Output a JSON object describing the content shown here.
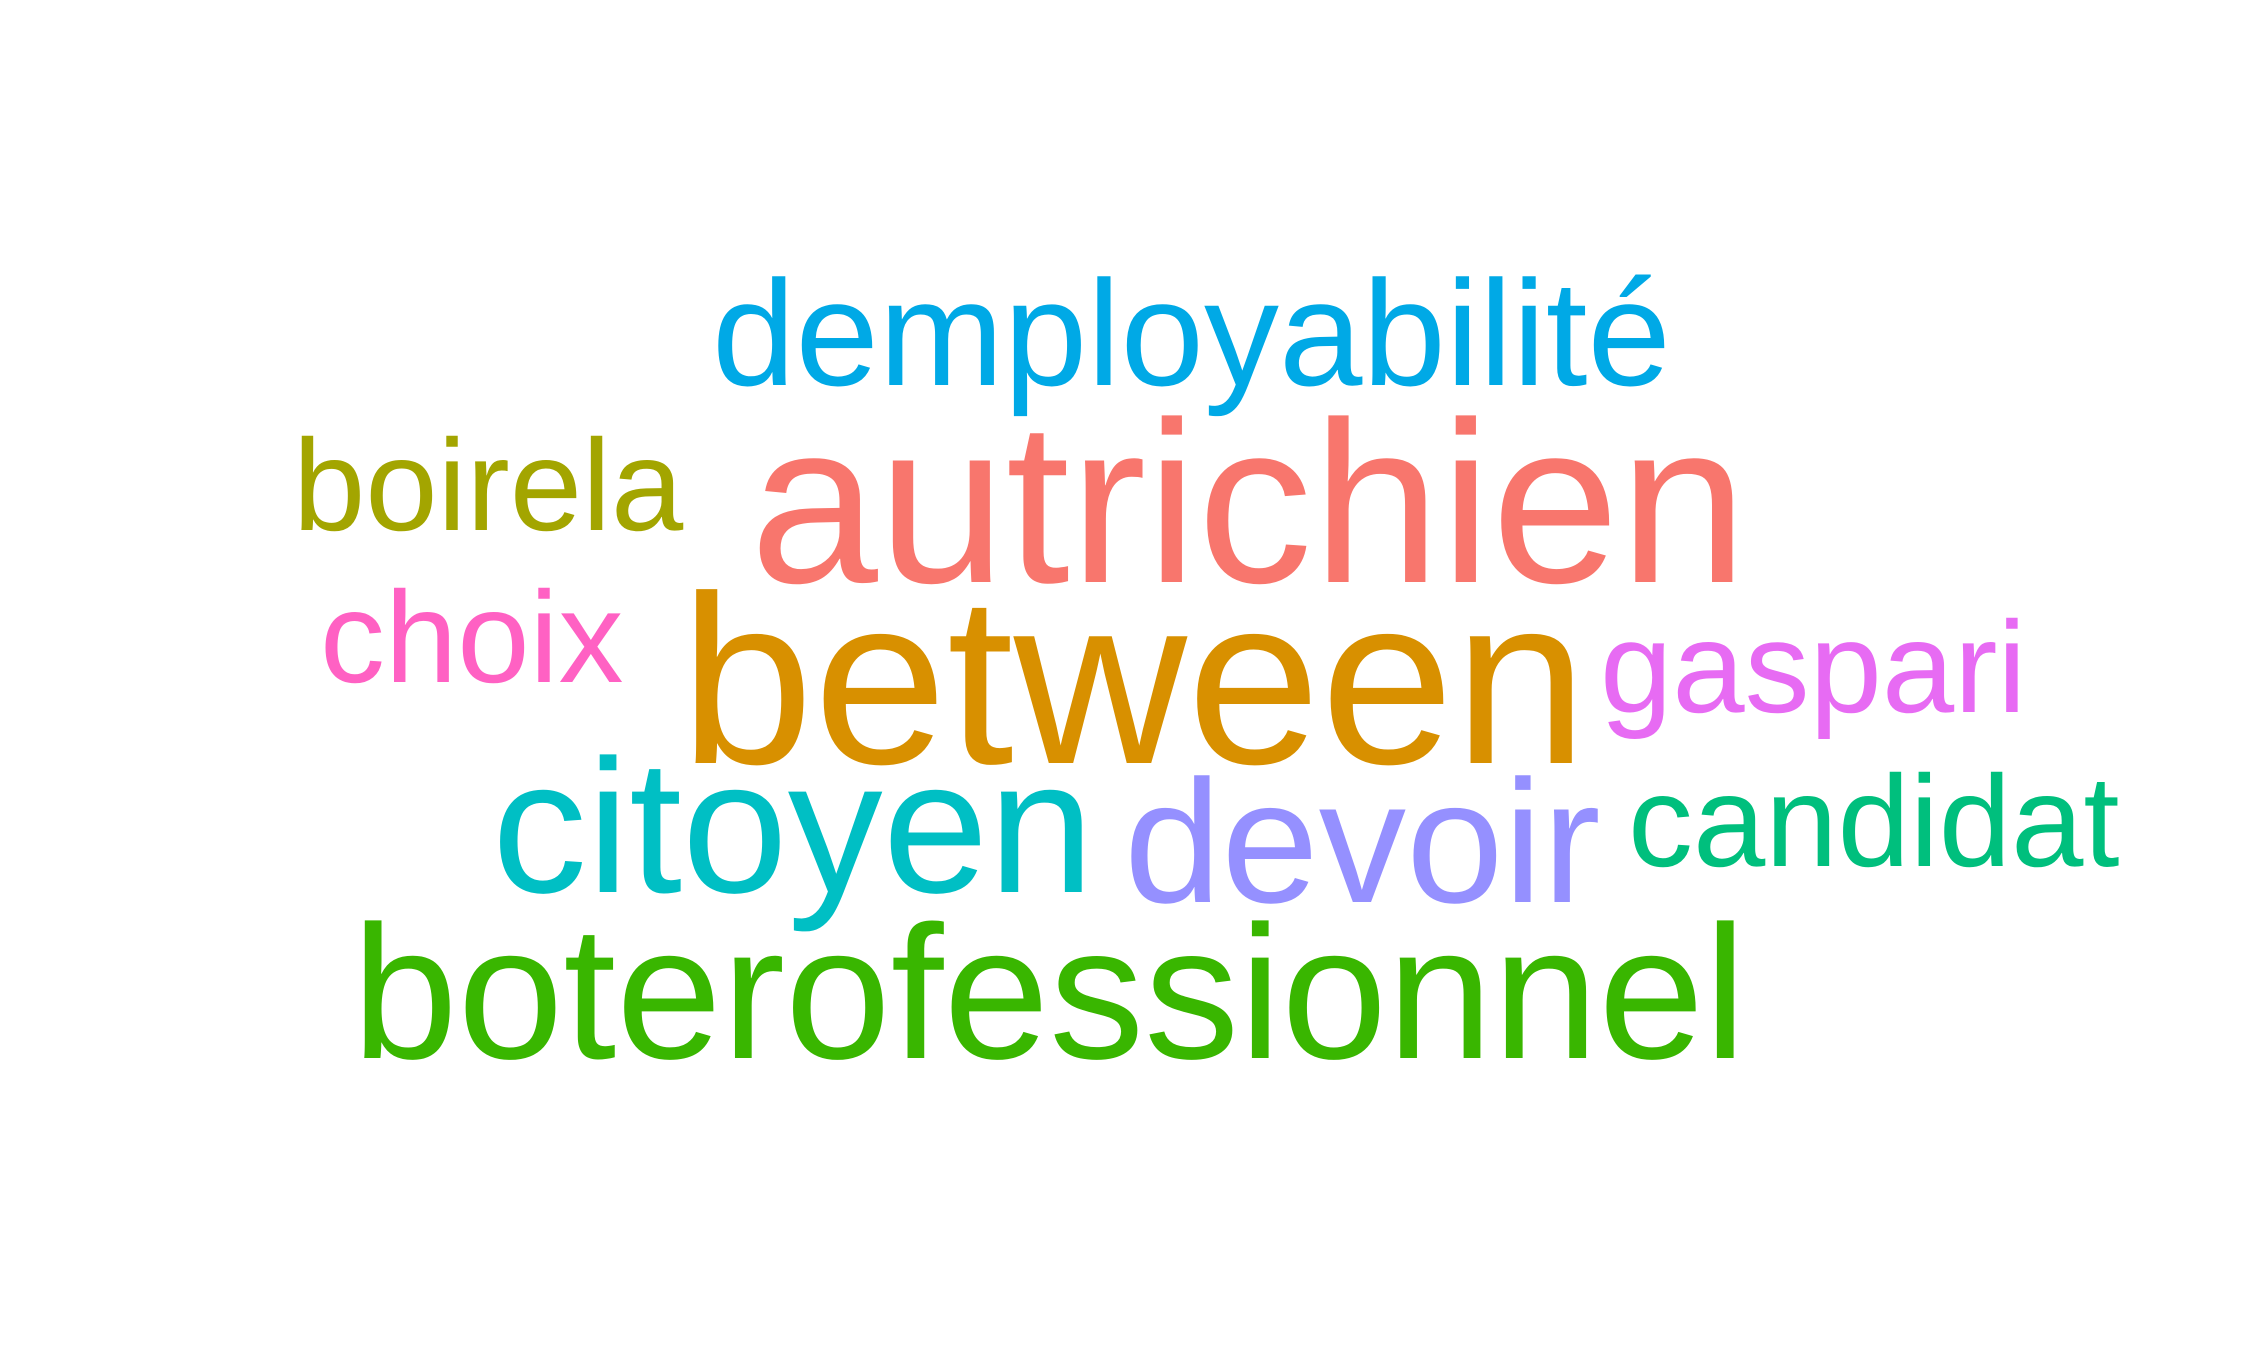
{
  "wordcloud": {
    "words": [
      {
        "id": "demployabilite",
        "text": "demployabilité",
        "color": "#00A9E6"
      },
      {
        "id": "boirela",
        "text": "boirela",
        "color": "#A3A500"
      },
      {
        "id": "autrichien",
        "text": "autrichien",
        "color": "#F8766D"
      },
      {
        "id": "choix",
        "text": "choix",
        "color": "#FF61C3"
      },
      {
        "id": "between",
        "text": "between",
        "color": "#D89000"
      },
      {
        "id": "gaspari",
        "text": "gaspari",
        "color": "#E76BF3"
      },
      {
        "id": "citoyen",
        "text": "citoyen",
        "color": "#00BFC4"
      },
      {
        "id": "devoir",
        "text": "devoir",
        "color": "#9590FF"
      },
      {
        "id": "candidat",
        "text": "candidat",
        "color": "#00BF7D"
      },
      {
        "id": "boterofessionnel",
        "text": "boterofessionnel",
        "color": "#39B600"
      }
    ]
  }
}
